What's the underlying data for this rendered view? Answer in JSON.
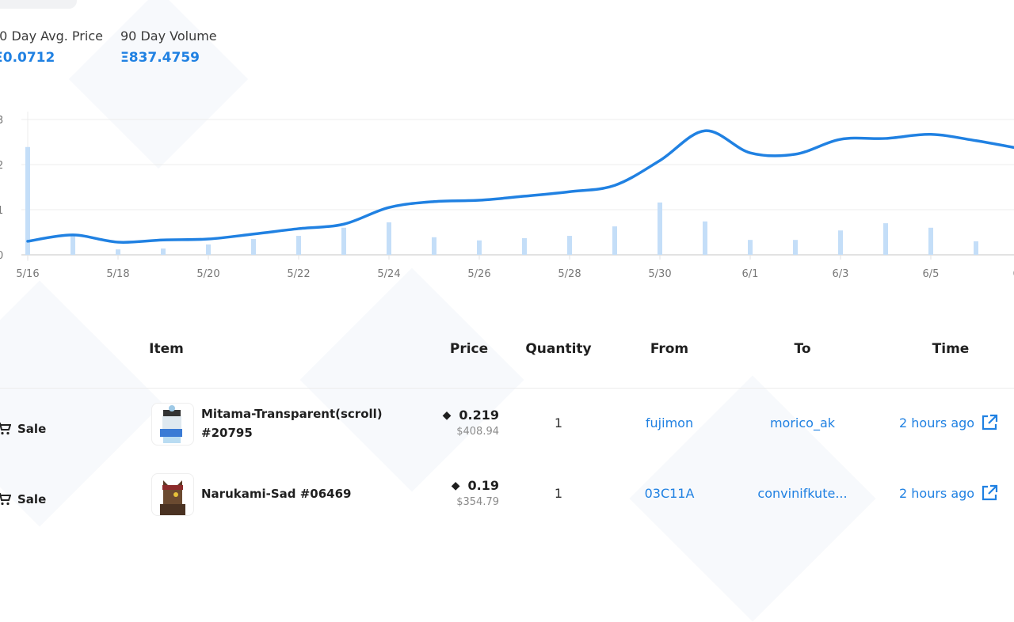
{
  "stats": [
    {
      "label": "90 Day Avg. Price",
      "display_label": "0 Day Avg. Price",
      "value": "Ξ0.0712"
    },
    {
      "label": "90 Day Volume",
      "value": "Ξ837.4759"
    }
  ],
  "chart_data": {
    "type": "line",
    "title": "",
    "x": [
      "5/16",
      "5/17",
      "5/18",
      "5/19",
      "5/20",
      "5/21",
      "5/22",
      "5/23",
      "5/24",
      "5/25",
      "5/26",
      "5/27",
      "5/28",
      "5/29",
      "5/30",
      "5/31",
      "6/1",
      "6/2",
      "6/3",
      "6/4",
      "6/5",
      "6/6",
      "6/7"
    ],
    "x_tick_labels": [
      "5/16",
      "5/18",
      "5/20",
      "5/22",
      "5/24",
      "5/26",
      "5/28",
      "5/30",
      "6/1",
      "6/3",
      "6/5",
      "6/7"
    ],
    "y_tick_labels": [
      "0",
      "1",
      "2",
      "3"
    ],
    "ylim": [
      0,
      3
    ],
    "grid": true,
    "series": [
      {
        "name": "Average price",
        "type": "line",
        "color": "#2081e2",
        "values": [
          0.3,
          0.44,
          0.28,
          0.33,
          0.35,
          0.46,
          0.58,
          0.68,
          1.05,
          1.18,
          1.21,
          1.3,
          1.4,
          1.54,
          2.09,
          2.75,
          2.26,
          2.23,
          2.56,
          2.58,
          2.67,
          2.53,
          2.35
        ]
      },
      {
        "name": "Volume",
        "type": "bar",
        "color": "#c4def8",
        "values": [
          2.39,
          0.44,
          0.12,
          0.14,
          0.23,
          0.35,
          0.42,
          0.6,
          0.72,
          0.39,
          0.32,
          0.37,
          0.42,
          0.63,
          1.16,
          0.74,
          0.33,
          0.33,
          0.54,
          0.7,
          0.6,
          0.3,
          null
        ]
      }
    ]
  },
  "table": {
    "headers": {
      "item": "Item",
      "price": "Price",
      "quantity": "Quantity",
      "from": "From",
      "to": "To",
      "time": "Time"
    },
    "rows": [
      {
        "event": "Sale",
        "item": "Mitama-Transparent(scroll) #20795",
        "price": "0.219",
        "usd": "$408.94",
        "quantity": "1",
        "from": "fujimon",
        "to": "morico_ak",
        "time": "2 hours ago"
      },
      {
        "event": "Sale",
        "item": "Narukami-Sad #06469",
        "price": "0.19",
        "usd": "$354.79",
        "quantity": "1",
        "from": "03C11A",
        "to": "convinifkute...",
        "time": "2 hours ago"
      }
    ]
  }
}
